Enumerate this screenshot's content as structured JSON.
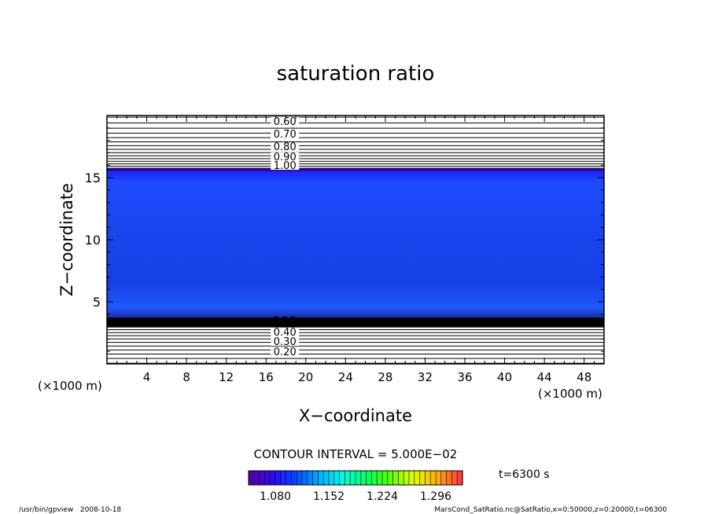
{
  "chart_data": {
    "type": "contour",
    "title": "saturation ratio",
    "xlabel": "X−coordinate",
    "ylabel": "Z−coordinate",
    "x_unit_label_left": "(×1000 m)",
    "x_unit_label_right": "(×1000 m)",
    "xlim": [
      0,
      50
    ],
    "ylim": [
      0,
      20
    ],
    "x_ticks": [
      4,
      8,
      12,
      16,
      20,
      24,
      28,
      32,
      36,
      40,
      44,
      48
    ],
    "y_ticks": [
      5,
      10,
      15
    ],
    "contour_interval_label": "CONTOUR INTERVAL = 5.000E−02",
    "upper_contour_labels": [
      "0.60",
      "0.70",
      "0.80",
      "0.90",
      "1.00"
    ],
    "lower_contour_labels": [
      "0.20",
      "0.30",
      "0.40"
    ],
    "saturated_layer": {
      "z_bottom": 3.6,
      "z_top": 15.6
    },
    "colorbar": {
      "min": 1.044,
      "max": 1.332,
      "tick_labels": [
        "1.080",
        "1.152",
        "1.224",
        "1.296"
      ],
      "colors": [
        "#5a00a8",
        "#2a0aff",
        "#0050ff",
        "#00b4ff",
        "#00ffe0",
        "#00ff60",
        "#60ff00",
        "#e0ff00",
        "#ffb000",
        "#ff4040"
      ]
    },
    "time_label": "t=6300 s"
  },
  "footer": {
    "left": "/usr/bin/gpview   2008-10-18",
    "right": "MarsCond_SatRatio.nc@SatRatio,x=0:50000,z=0:20000,t=06300"
  }
}
